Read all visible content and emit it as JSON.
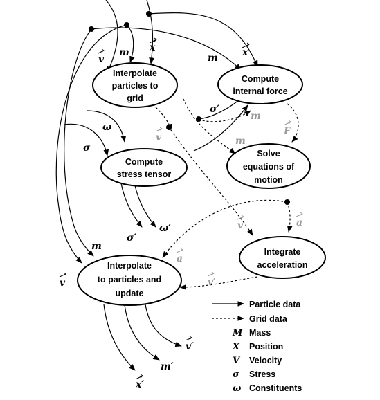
{
  "nodes": {
    "interp_grid": [
      "Interpolate",
      "particles to",
      "grid"
    ],
    "internal_force": [
      "Compute",
      "internal force"
    ],
    "stress": [
      "Compute",
      "stress tensor"
    ],
    "solve": [
      "Solve",
      "equations of",
      "motion"
    ],
    "integrate": [
      "Integrate",
      "acceleration"
    ],
    "interp_particles": [
      "Interpolate",
      "to particles and",
      "update"
    ]
  },
  "edge_labels": {
    "v_in": "v",
    "m_in_grid": "m",
    "x_in_grid": "x",
    "m_in_force": "m",
    "x_in_force": "x",
    "sigma_out_force": "σ′",
    "m_grid_force": "m",
    "v_grid": "v",
    "sigma_in_stress": "σ",
    "omega_in_stress": "ω",
    "m_grid_solve": "m",
    "f_grid": "F",
    "sigma_out": "σ′",
    "omega_out": "ω′",
    "v_grid_integrate": "v",
    "a_grid_integrate": "a",
    "a_grid_update": "a",
    "m_in_update": "m",
    "v_in_update": "v",
    "v_grid_update": "v′",
    "v_out": "v′",
    "m_out": "m′",
    "x_out": "x′"
  },
  "legend": {
    "particle": "Particle data",
    "grid": "Grid data",
    "items": [
      {
        "symbol": "M",
        "label": "Mass"
      },
      {
        "symbol": "X",
        "label": "Position"
      },
      {
        "symbol": "V",
        "label": "Velocity"
      },
      {
        "symbol": "σ",
        "label": "Stress"
      },
      {
        "symbol": "ω",
        "label": "Constituents"
      }
    ]
  },
  "colors": {
    "ink": "#000000",
    "grid_label": "#9a9a9a"
  }
}
